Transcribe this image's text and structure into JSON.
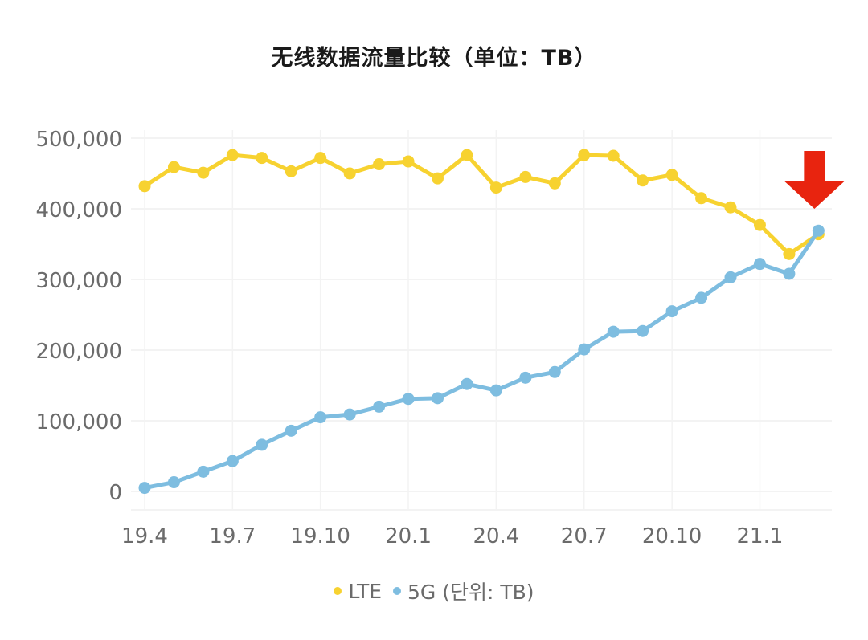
{
  "chart_data": {
    "type": "line",
    "title": "无线数据流量比较（单位：TB）",
    "xlabel": "",
    "ylabel": "",
    "x": [
      "19.4",
      "19.5",
      "19.6",
      "19.7",
      "19.8",
      "19.9",
      "19.10",
      "19.11",
      "19.12",
      "20.1",
      "20.2",
      "20.3",
      "20.4",
      "20.5",
      "20.6",
      "20.7",
      "20.8",
      "20.9",
      "20.10",
      "20.11",
      "20.12",
      "21.1",
      "21.2",
      "21.3"
    ],
    "x_tick_labels": [
      "19.4",
      "19.7",
      "19.10",
      "20.1",
      "20.4",
      "20.7",
      "20.10",
      "21.1"
    ],
    "y_tick_labels": [
      "0",
      "100,000",
      "200,000",
      "300,000",
      "400,000",
      "500,000"
    ],
    "y_ticks": [
      0,
      100000,
      200000,
      300000,
      400000,
      500000
    ],
    "ylim": [
      0,
      500000
    ],
    "grid": true,
    "legend_position": "bottom",
    "legend_suffix": "(단위: TB)",
    "series": [
      {
        "name": "LTE",
        "color": "#f7d230",
        "values": [
          432000,
          459000,
          451000,
          476000,
          472000,
          453000,
          472000,
          450000,
          463000,
          467000,
          443000,
          476000,
          430000,
          445000,
          436000,
          476000,
          475000,
          440000,
          448000,
          415000,
          402000,
          377000,
          336000,
          364000
        ]
      },
      {
        "name": "5G",
        "color": "#7ebde0",
        "values": [
          5000,
          13000,
          28000,
          43000,
          66000,
          86000,
          105000,
          109000,
          120000,
          131000,
          132000,
          152000,
          143000,
          161000,
          169000,
          201000,
          226000,
          227000,
          255000,
          274000,
          303000,
          322000,
          308000,
          369000
        ]
      }
    ],
    "annotations": [
      {
        "type": "arrow",
        "direction": "down",
        "color": "#e8240f",
        "target": "21.3"
      }
    ]
  },
  "legend": {
    "items": [
      {
        "label": "LTE",
        "color": "#f7d230"
      },
      {
        "label": "5G (단위: TB)",
        "color": "#7ebde0"
      }
    ]
  }
}
